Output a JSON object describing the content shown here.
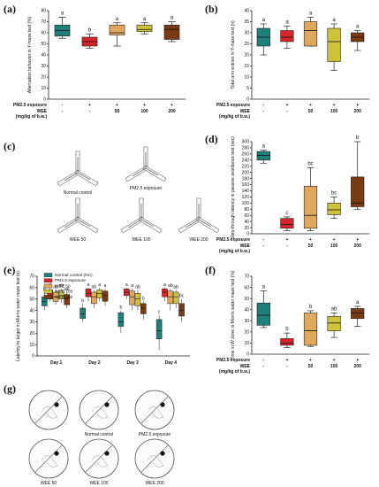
{
  "panel_labels": {
    "a": "(a)",
    "b": "(b)",
    "c": "(c)",
    "d": "(d)",
    "e": "(e)",
    "f": "(f)",
    "g": "(g)"
  },
  "treatment_rows": {
    "pm_label": "PM2.5 exposure",
    "wee_label": "WEE",
    "dose_label": "(mg/kg of b.w.)",
    "pm_values": [
      "-",
      "+",
      "+",
      "+",
      "+"
    ],
    "wee_values": [
      "-",
      "-",
      "50",
      "100",
      "200"
    ]
  },
  "maze_c_captions": [
    "Normal control",
    "PM2.5 exposure",
    "WEE 50",
    "WEE 100",
    "WEE 200"
  ],
  "maze_g_captions": [
    "Normal control",
    "PM2.5 exposure",
    "WEE 50",
    "WEE 100",
    "WEE 200"
  ],
  "colors": {
    "nc": "#1f7f7a",
    "pm": "#d6242a",
    "w50": "#e0a85e",
    "w100": "#cfc23a",
    "w200": "#7a3a12"
  },
  "chart_data": [
    {
      "id": "a",
      "type": "box",
      "ylabel": "Alternation behavior in Y-maze test (%)",
      "ylim": [
        0,
        80
      ],
      "yticks": [
        0,
        10,
        20,
        30,
        40,
        50,
        60,
        70,
        80
      ],
      "groups": [
        {
          "min": 55,
          "q1": 57,
          "median": 62,
          "q3": 67,
          "max": 74,
          "sig": "a"
        },
        {
          "min": 46,
          "q1": 48,
          "median": 52,
          "q3": 56,
          "max": 59,
          "sig": "b"
        },
        {
          "min": 48,
          "q1": 58,
          "median": 60,
          "q3": 67,
          "max": 69,
          "sig": "a"
        },
        {
          "min": 59,
          "q1": 61,
          "median": 63,
          "q3": 67,
          "max": 69,
          "sig": "a"
        },
        {
          "min": 52,
          "q1": 54,
          "median": 63,
          "q3": 67,
          "max": 70,
          "sig": "a"
        }
      ]
    },
    {
      "id": "b",
      "type": "box",
      "ylabel": "Total arm entries in Y-maze test (n)",
      "ylim": [
        0,
        40
      ],
      "yticks": [
        0,
        5,
        10,
        15,
        20,
        25,
        30,
        35,
        40
      ],
      "groups": [
        {
          "min": 20,
          "q1": 24,
          "median": 28,
          "q3": 32,
          "max": 34,
          "sig": "a"
        },
        {
          "min": 23,
          "q1": 26,
          "median": 28,
          "q3": 31,
          "max": 33,
          "sig": "a"
        },
        {
          "min": 24,
          "q1": 24,
          "median": 31,
          "q3": 35,
          "max": 37,
          "sig": "a"
        },
        {
          "min": 13,
          "q1": 17,
          "median": 26,
          "q3": 32,
          "max": 34,
          "sig": "a"
        },
        {
          "min": 22,
          "q1": 26,
          "median": 28,
          "q3": 30,
          "max": 31,
          "sig": "a"
        }
      ]
    },
    {
      "id": "d",
      "type": "box",
      "ylabel": "Step-through latency in passive avoidance test (sec)",
      "ylim": [
        0,
        300
      ],
      "yticks": [
        0,
        20,
        40,
        60,
        80,
        100,
        120,
        140,
        160,
        180,
        200,
        220,
        240,
        260,
        280,
        300
      ],
      "groups": [
        {
          "min": 230,
          "q1": 240,
          "median": 255,
          "q3": 268,
          "max": 272,
          "sig": "a"
        },
        {
          "min": 10,
          "q1": 18,
          "median": 30,
          "q3": 50,
          "max": 55,
          "sig": "c"
        },
        {
          "min": 10,
          "q1": 18,
          "median": 60,
          "q3": 155,
          "max": 215,
          "sig": "bc"
        },
        {
          "min": 50,
          "q1": 62,
          "median": 78,
          "q3": 100,
          "max": 120,
          "sig": "bc"
        },
        {
          "min": 80,
          "q1": 88,
          "median": 100,
          "q3": 185,
          "max": 300,
          "sig": "b"
        }
      ]
    },
    {
      "id": "e",
      "type": "grouped-box",
      "ylabel": "Latency to target in Morris water maze test (s)",
      "ylim": [
        0,
        70
      ],
      "yticks": [
        0,
        10,
        20,
        30,
        40,
        50,
        60,
        70
      ],
      "categories": [
        "Day 1",
        "Day 2",
        "Day 3",
        "Day 4"
      ],
      "legend": [
        "Normal control (NC)",
        "PM2.5 exposure",
        "WEE 50",
        "WEE 100",
        "WEE 200"
      ],
      "series": [
        {
          "name": "Normal control (NC)",
          "boxes": [
            {
              "min": 40,
              "q1": 44,
              "median": 48,
              "q3": 52,
              "max": 56,
              "sig": "b"
            },
            {
              "min": 30,
              "q1": 33,
              "median": 37,
              "q3": 42,
              "max": 46,
              "sig": "b"
            },
            {
              "min": 20,
              "q1": 26,
              "median": 30,
              "q3": 38,
              "max": 40,
              "sig": "b"
            },
            {
              "min": 5,
              "q1": 15,
              "median": 22,
              "q3": 32,
              "max": 36,
              "sig": "c"
            }
          ]
        },
        {
          "name": "PM2.5 exposure",
          "boxes": [
            {
              "min": 48,
              "q1": 50,
              "median": 55,
              "q3": 58,
              "max": 60,
              "sig": "a"
            },
            {
              "min": 48,
              "q1": 52,
              "median": 55,
              "q3": 59,
              "max": 60,
              "sig": "a"
            },
            {
              "min": 50,
              "q1": 53,
              "median": 56,
              "q3": 59,
              "max": 60,
              "sig": "a"
            },
            {
              "min": 48,
              "q1": 52,
              "median": 56,
              "q3": 59,
              "max": 60,
              "sig": "a"
            }
          ]
        },
        {
          "name": "WEE 50",
          "boxes": [
            {
              "min": 45,
              "q1": 48,
              "median": 52,
              "q3": 56,
              "max": 58,
              "sig": "ab"
            },
            {
              "min": 42,
              "q1": 46,
              "median": 52,
              "q3": 56,
              "max": 58,
              "sig": "ab"
            },
            {
              "min": 40,
              "q1": 45,
              "median": 52,
              "q3": 57,
              "max": 59,
              "sig": "a"
            },
            {
              "min": 40,
              "q1": 46,
              "median": 52,
              "q3": 57,
              "max": 59,
              "sig": "ab"
            }
          ]
        },
        {
          "name": "WEE 100",
          "boxes": [
            {
              "min": 47,
              "q1": 50,
              "median": 53,
              "q3": 57,
              "max": 59,
              "sig": "ab"
            },
            {
              "min": 48,
              "q1": 51,
              "median": 55,
              "q3": 58,
              "max": 60,
              "sig": "a"
            },
            {
              "min": 40,
              "q1": 44,
              "median": 50,
              "q3": 55,
              "max": 58,
              "sig": "ab"
            },
            {
              "min": 42,
              "q1": 46,
              "median": 52,
              "q3": 56,
              "max": 58,
              "sig": "ab"
            }
          ]
        },
        {
          "name": "WEE 200",
          "boxes": [
            {
              "min": 42,
              "q1": 45,
              "median": 50,
              "q3": 54,
              "max": 56,
              "sig": "ab"
            },
            {
              "min": 44,
              "q1": 48,
              "median": 53,
              "q3": 57,
              "max": 59,
              "sig": "a"
            },
            {
              "min": 32,
              "q1": 37,
              "median": 42,
              "q3": 46,
              "max": 48,
              "sig": "b"
            },
            {
              "min": 30,
              "q1": 35,
              "median": 40,
              "q3": 46,
              "max": 50,
              "sig": "bc"
            }
          ]
        }
      ]
    },
    {
      "id": "f",
      "type": "box",
      "ylabel": "Time in W zone in Morris water maze test (%)",
      "ylim": [
        0,
        70
      ],
      "yticks": [
        0,
        10,
        20,
        30,
        40,
        50,
        60,
        70
      ],
      "groups": [
        {
          "min": 24,
          "q1": 26,
          "median": 35,
          "q3": 46,
          "max": 57,
          "sig": "a"
        },
        {
          "min": 6,
          "q1": 8,
          "median": 10,
          "q3": 14,
          "max": 19,
          "sig": "b"
        },
        {
          "min": 7,
          "q1": 8,
          "median": 21,
          "q3": 37,
          "max": 39,
          "sig": "b"
        },
        {
          "min": 15,
          "q1": 21,
          "median": 28,
          "q3": 34,
          "max": 37,
          "sig": "ab"
        },
        {
          "min": 25,
          "q1": 32,
          "median": 37,
          "q3": 41,
          "max": 43,
          "sig": "a"
        }
      ]
    }
  ]
}
